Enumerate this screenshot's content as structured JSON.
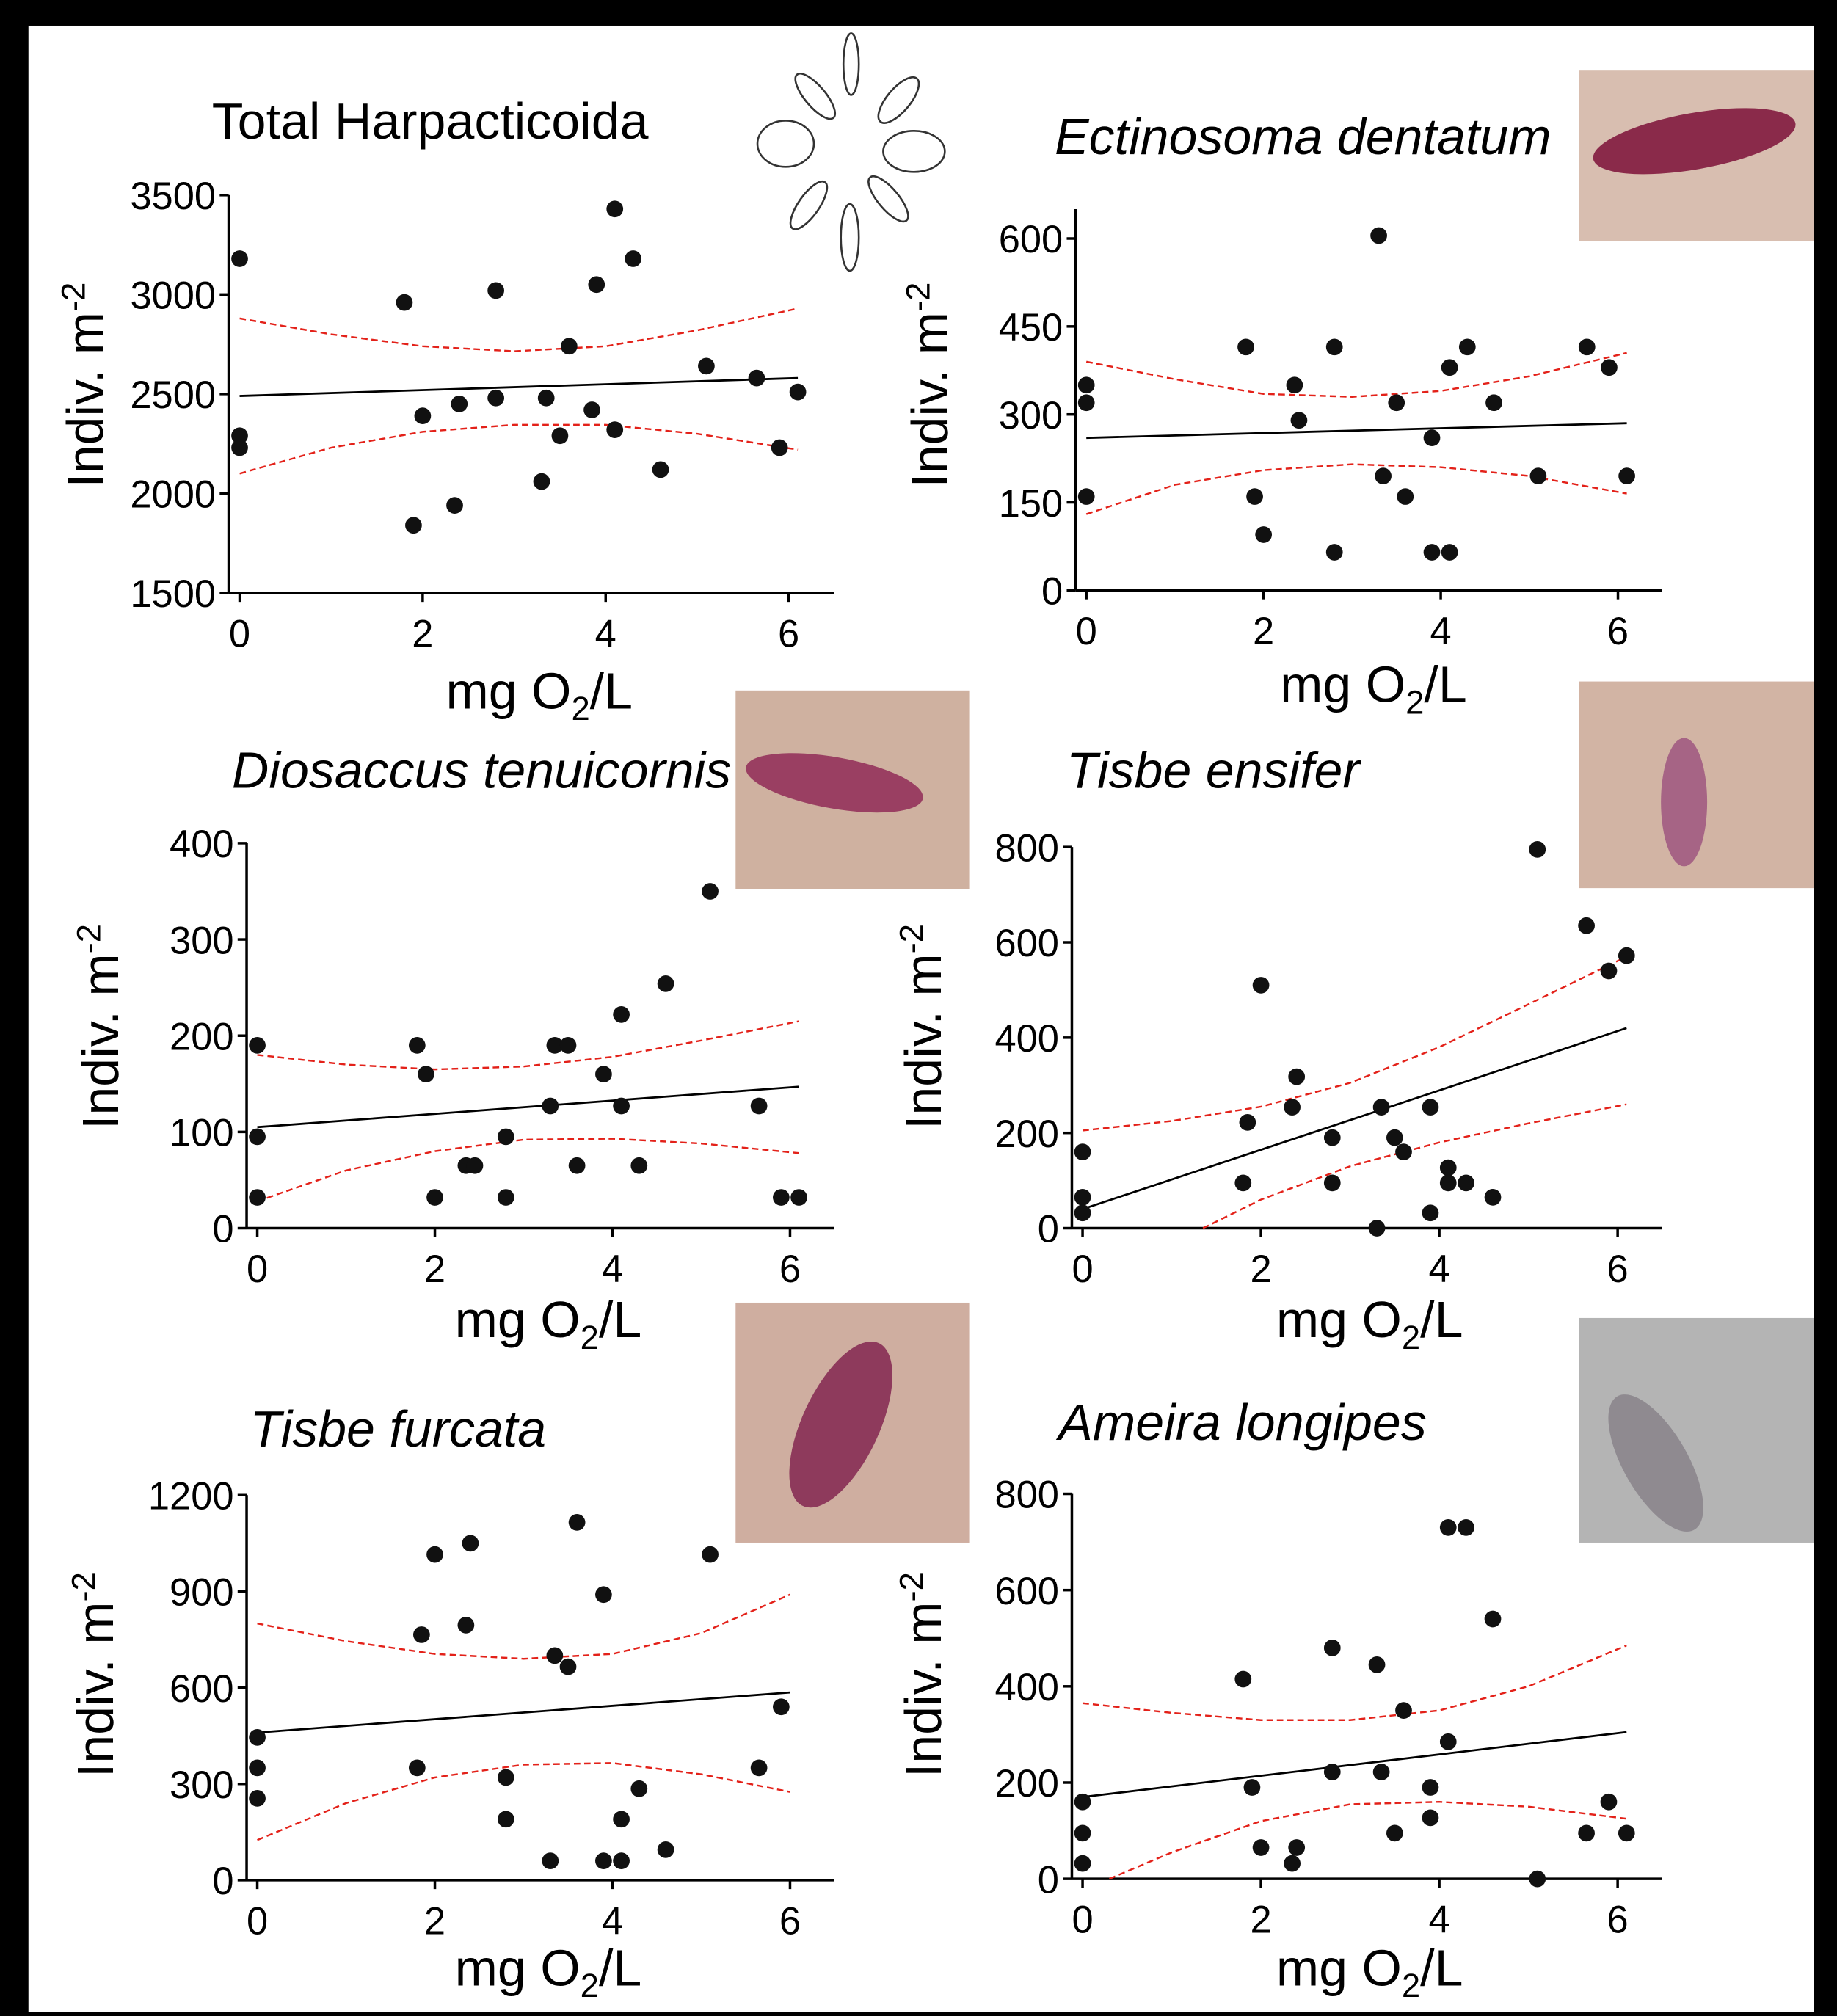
{
  "chart_data": [
    {
      "type": "scatter",
      "title": "Total Harpacticoida",
      "title_italic": false,
      "ylabel": "Indiv. m",
      "ylabel_sup": "-2",
      "xlabel": [
        "mg O",
        "2",
        "/L"
      ],
      "xlim": [
        -0.12,
        6.5
      ],
      "xticks": [
        0,
        2,
        4,
        6
      ],
      "ylim": [
        1500,
        3500
      ],
      "yticks": [
        1500,
        2000,
        2500,
        3000,
        3500
      ],
      "color": "#111111",
      "x": [
        0,
        0,
        0,
        1.8,
        1.9,
        2.0,
        2.35,
        2.4,
        2.8,
        2.8,
        3.3,
        3.35,
        3.5,
        3.6,
        3.85,
        3.9,
        4.1,
        4.1,
        4.3,
        4.6,
        5.1,
        5.65,
        5.9,
        6.1
      ],
      "values": [
        3180,
        2290,
        2230,
        2960,
        1840,
        2390,
        1940,
        2450,
        3020,
        2480,
        2060,
        2480,
        2290,
        2740,
        2420,
        3050,
        3430,
        2320,
        3180,
        2120,
        2640,
        2580,
        2230,
        2510
      ],
      "fit": {
        "color": "#000000",
        "x": [
          0,
          6.1
        ],
        "values": [
          2490,
          2580
        ]
      },
      "band": {
        "color": "#e32119",
        "upper": {
          "x": [
            0,
            1,
            2,
            3,
            4,
            5,
            6.1
          ],
          "values": [
            2880,
            2800,
            2740,
            2715,
            2740,
            2820,
            2930
          ]
        },
        "lower": {
          "x": [
            0,
            1,
            2,
            3,
            4,
            5,
            6.1
          ],
          "values": [
            2100,
            2230,
            2310,
            2345,
            2345,
            2300,
            2220
          ]
        }
      }
    },
    {
      "type": "scatter",
      "title": "Ectinosoma dentatum",
      "title_italic": true,
      "ylabel": "Indiv. m",
      "ylabel_sup": "-2",
      "xlabel": [
        "mg O",
        "2",
        "/L"
      ],
      "xlim": [
        -0.12,
        6.5
      ],
      "xticks": [
        0,
        2,
        4,
        6
      ],
      "ylim": [
        0,
        650
      ],
      "yticks": [
        0,
        150,
        300,
        450,
        600
      ],
      "color": "#111111",
      "x": [
        0,
        0,
        0,
        1.8,
        1.9,
        2.0,
        2.35,
        2.4,
        2.8,
        2.8,
        3.3,
        3.35,
        3.5,
        3.6,
        3.9,
        3.9,
        4.1,
        4.1,
        4.3,
        4.6,
        5.1,
        5.65,
        5.9,
        6.1
      ],
      "values": [
        350,
        320,
        160,
        415,
        160,
        95,
        350,
        290,
        415,
        65,
        605,
        195,
        320,
        160,
        260,
        65,
        380,
        65,
        415,
        320,
        195,
        415,
        380,
        195
      ],
      "fit": {
        "color": "#000000",
        "x": [
          0,
          6.1
        ],
        "values": [
          260,
          285
        ]
      },
      "band": {
        "color": "#e32119",
        "upper": {
          "x": [
            0,
            1,
            2,
            3,
            4,
            5,
            6.1
          ],
          "values": [
            390,
            360,
            335,
            330,
            340,
            365,
            405
          ]
        },
        "lower": {
          "x": [
            0,
            1,
            2,
            3,
            4,
            5,
            6.1
          ],
          "values": [
            130,
            180,
            205,
            215,
            210,
            195,
            165
          ]
        }
      }
    },
    {
      "type": "scatter",
      "title": "Diosaccus tenuicornis",
      "title_italic": true,
      "ylabel": "Indiv. m",
      "ylabel_sup": "-2",
      "xlabel": [
        "mg O",
        "2",
        "/L"
      ],
      "xlim": [
        -0.12,
        6.5
      ],
      "xticks": [
        0,
        2,
        4,
        6
      ],
      "ylim": [
        0,
        400
      ],
      "yticks": [
        0,
        100,
        200,
        300,
        400
      ],
      "color": "#111111",
      "x": [
        0,
        0,
        0,
        1.8,
        1.9,
        2.0,
        2.35,
        2.45,
        2.8,
        2.8,
        3.3,
        3.35,
        3.5,
        3.6,
        3.9,
        4.1,
        4.1,
        4.3,
        4.6,
        5.1,
        5.65,
        5.9,
        6.1
      ],
      "values": [
        190,
        95,
        32,
        190,
        160,
        32,
        65,
        65,
        95,
        32,
        127,
        190,
        190,
        65,
        160,
        222,
        127,
        65,
        254,
        350,
        127,
        32,
        32
      ],
      "fit": {
        "color": "#000000",
        "x": [
          0,
          6.1
        ],
        "values": [
          105,
          147
        ]
      },
      "band": {
        "color": "#e32119",
        "upper": {
          "x": [
            0,
            1,
            2,
            3,
            4,
            5,
            6.1
          ],
          "values": [
            180,
            170,
            165,
            168,
            178,
            195,
            215
          ]
        },
        "lower": {
          "x": [
            0,
            1,
            2,
            3,
            4,
            5,
            6.1
          ],
          "values": [
            28,
            60,
            80,
            92,
            93,
            88,
            78
          ]
        }
      }
    },
    {
      "type": "scatter",
      "title": "Tisbe ensifer",
      "title_italic": true,
      "ylabel": "Indiv. m",
      "ylabel_sup": "-2",
      "xlabel": [
        "mg O",
        "2",
        "/L"
      ],
      "xlim": [
        -0.12,
        6.5
      ],
      "xticks": [
        0,
        2,
        4,
        6
      ],
      "ylim": [
        0,
        800
      ],
      "yticks": [
        0,
        200,
        400,
        600,
        800
      ],
      "color": "#111111",
      "x": [
        0,
        0,
        0,
        1.8,
        1.85,
        2.0,
        2.35,
        2.4,
        2.8,
        2.8,
        3.3,
        3.35,
        3.5,
        3.6,
        3.9,
        3.9,
        4.1,
        4.1,
        4.3,
        4.6,
        5.1,
        5.65,
        5.9,
        6.1
      ],
      "values": [
        160,
        65,
        32,
        95,
        222,
        510,
        254,
        318,
        190,
        95,
        0,
        254,
        190,
        160,
        254,
        32,
        127,
        95,
        95,
        65,
        795,
        635,
        540,
        572
      ],
      "fit": {
        "color": "#000000",
        "x": [
          0,
          6.1
        ],
        "values": [
          40,
          420
        ]
      },
      "band": {
        "color": "#e32119",
        "upper": {
          "x": [
            0,
            1,
            2,
            3,
            4,
            5,
            6.1
          ],
          "values": [
            205,
            225,
            255,
            305,
            380,
            470,
            570
          ]
        },
        "lower": {
          "x": [
            1.35,
            2,
            3,
            4,
            5,
            6.1
          ],
          "values": [
            0,
            60,
            130,
            180,
            220,
            260
          ]
        }
      }
    },
    {
      "type": "scatter",
      "title": "Tisbe furcata",
      "title_italic": true,
      "ylabel": "Indiv. m",
      "ylabel_sup": "-2",
      "xlabel": [
        "mg O",
        "2",
        "/L"
      ],
      "xlim": [
        -0.12,
        6.5
      ],
      "xticks": [
        0,
        2,
        4,
        6
      ],
      "ylim": [
        0,
        1200
      ],
      "yticks": [
        0,
        300,
        600,
        900,
        1200
      ],
      "color": "#111111",
      "x": [
        0,
        0,
        0,
        1.8,
        1.85,
        2.0,
        2.35,
        2.4,
        2.8,
        2.8,
        3.3,
        3.35,
        3.5,
        3.6,
        3.9,
        3.9,
        4.1,
        4.1,
        4.3,
        4.6,
        5.1,
        5.65,
        5.9
      ],
      "values": [
        445,
        350,
        255,
        350,
        765,
        1015,
        795,
        1050,
        320,
        190,
        60,
        700,
        665,
        1115,
        890,
        60,
        190,
        60,
        285,
        95,
        1015,
        350,
        540
      ],
      "fit": {
        "color": "#000000",
        "x": [
          0,
          6
        ],
        "values": [
          460,
          585
        ]
      },
      "band": {
        "color": "#e32119",
        "upper": {
          "x": [
            0,
            1,
            2,
            3,
            4,
            5,
            6
          ],
          "values": [
            800,
            745,
            705,
            690,
            705,
            770,
            890
          ]
        },
        "lower": {
          "x": [
            0,
            1,
            2,
            3,
            4,
            5,
            6
          ],
          "values": [
            125,
            240,
            320,
            360,
            365,
            330,
            275
          ]
        }
      }
    },
    {
      "type": "scatter",
      "title": "Ameira longipes",
      "title_italic": true,
      "ylabel": "Indiv. m",
      "ylabel_sup": "-2",
      "xlabel": [
        "mg O",
        "2",
        "/L"
      ],
      "xlim": [
        -0.12,
        6.5
      ],
      "xticks": [
        0,
        2,
        4,
        6
      ],
      "ylim": [
        0,
        800
      ],
      "yticks": [
        0,
        200,
        400,
        600,
        800
      ],
      "color": "#111111",
      "x": [
        0,
        0,
        0,
        1.8,
        1.9,
        2.0,
        2.35,
        2.4,
        2.8,
        2.8,
        3.3,
        3.35,
        3.5,
        3.6,
        3.9,
        3.9,
        4.1,
        4.1,
        4.3,
        4.6,
        5.1,
        5.65,
        5.9,
        6.1
      ],
      "values": [
        160,
        95,
        32,
        415,
        190,
        65,
        32,
        65,
        480,
        222,
        445,
        222,
        95,
        350,
        190,
        127,
        730,
        285,
        730,
        540,
        0,
        95,
        160,
        95
      ],
      "fit": {
        "color": "#000000",
        "x": [
          0,
          6.1
        ],
        "values": [
          170,
          305
        ]
      },
      "band": {
        "color": "#e32119",
        "upper": {
          "x": [
            0,
            1,
            2,
            3,
            4,
            5,
            6.1
          ],
          "values": [
            365,
            345,
            330,
            330,
            350,
            400,
            485
          ]
        },
        "lower": {
          "x": [
            0.3,
            1,
            2,
            3,
            4,
            5,
            6.1
          ],
          "values": [
            0,
            55,
            120,
            155,
            160,
            150,
            125
          ]
        }
      }
    }
  ]
}
